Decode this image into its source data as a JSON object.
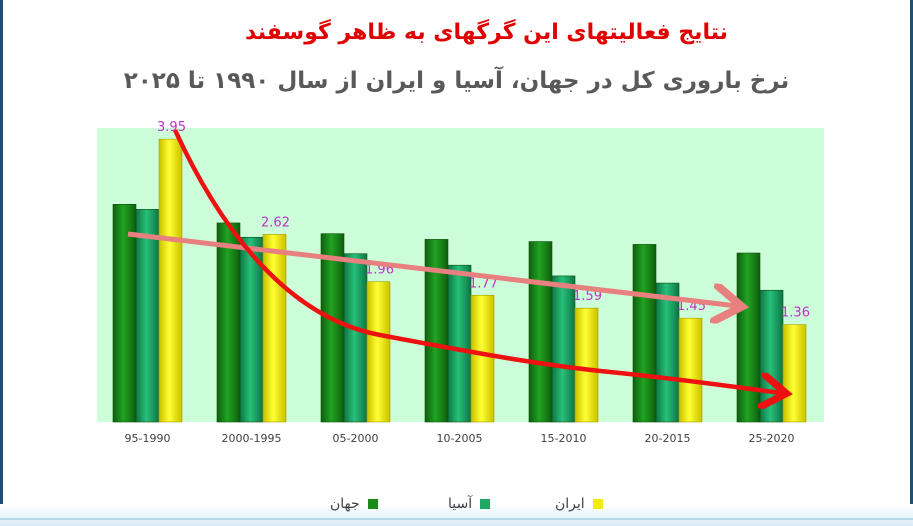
{
  "title": "نتایج فعالیتهای این گرگهای به ظاهر گوسفند",
  "subtitle": "نرخ باروری کل در جهان، آسیا و ایران از سال ۱۹۹۰ تا ۲۰۲۵",
  "colors": {
    "plot_bg": "#ccffd9",
    "world": "#1a8a1a",
    "asia": "#1fa865",
    "iran": "#f2ea14",
    "data_label": "#c030c8",
    "curve_red": "#ee1111",
    "arrow_pink": "#e88080"
  },
  "chart_data": {
    "type": "bar",
    "title": "نرخ باروری کل در جهان، آسیا و ایران از سال ۱۹۹۰ تا ۲۰۲۵",
    "categories": [
      "95-1990",
      "2000-1995",
      "05-2000",
      "10-2005",
      "15-2010",
      "20-2015",
      "25-2020"
    ],
    "series": [
      {
        "name": "جهان",
        "values": [
          3.04,
          2.78,
          2.63,
          2.55,
          2.52,
          2.48,
          2.36
        ]
      },
      {
        "name": "آسیا",
        "values": [
          2.97,
          2.58,
          2.35,
          2.19,
          2.04,
          1.94,
          1.84
        ]
      },
      {
        "name": "ایران",
        "values": [
          3.95,
          2.62,
          1.96,
          1.77,
          1.59,
          1.45,
          1.36
        ],
        "labels": [
          "3.95",
          "2.62",
          "1.96",
          "1.77",
          "1.59",
          "1.45",
          "1.36"
        ]
      }
    ],
    "ylim": [
      0,
      4.05
    ],
    "grid": false,
    "legend": "bottom",
    "annotations": [
      "red curved arrow tracing Iran decline",
      "pink straight arrow tracing world decline"
    ]
  }
}
